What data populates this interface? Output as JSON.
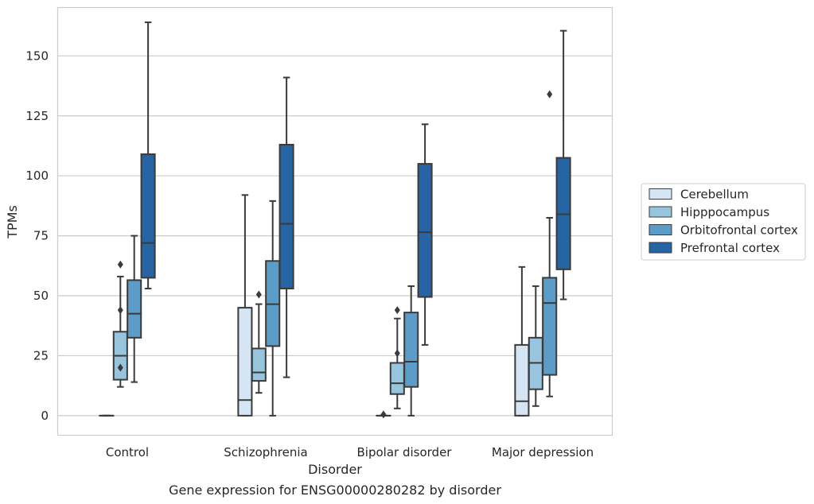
{
  "chart_data": {
    "type": "box",
    "xlabel": "Disorder",
    "ylabel": "TPMs",
    "caption": "Gene expression for ENSG00000280282 by disorder",
    "ylim": [
      -8,
      170
    ],
    "yticks": [
      0,
      25,
      50,
      75,
      100,
      125,
      150
    ],
    "grid": "horizontal",
    "legend_placement": "right",
    "categories": [
      "Control",
      "Schizophrenia",
      "Bipolar disorder",
      "Major depression"
    ],
    "series": [
      {
        "name": "Cerebellum",
        "color": "#d5e5f3",
        "boxes": [
          {
            "whislo": 0,
            "q1": 0,
            "med": 0,
            "q3": 0,
            "whishi": 0,
            "fliers": []
          },
          {
            "whislo": 0,
            "q1": 0,
            "med": 6.5,
            "q3": 45,
            "whishi": 92,
            "fliers": []
          },
          {
            "whislo": 0,
            "q1": 0,
            "med": 0,
            "q3": 0,
            "whishi": 0,
            "fliers": [
              0.5
            ]
          },
          {
            "whislo": 0,
            "q1": 0,
            "med": 6,
            "q3": 29.5,
            "whishi": 62,
            "fliers": []
          }
        ]
      },
      {
        "name": "Hipppocampus",
        "color": "#98c4dd",
        "boxes": [
          {
            "whislo": 12,
            "q1": 15,
            "med": 25,
            "q3": 35,
            "whishi": 58,
            "fliers": [
              63,
              44,
              20
            ]
          },
          {
            "whislo": 9.5,
            "q1": 14.5,
            "med": 18,
            "q3": 28,
            "whishi": 46.5,
            "fliers": [
              50.5
            ]
          },
          {
            "whislo": 3,
            "q1": 9,
            "med": 13.5,
            "q3": 22,
            "whishi": 40.5,
            "fliers": [
              44,
              26
            ]
          },
          {
            "whislo": 4,
            "q1": 11,
            "med": 22,
            "q3": 32.5,
            "whishi": 54,
            "fliers": []
          }
        ]
      },
      {
        "name": "Orbitofrontal cortex",
        "color": "#5b9cc9",
        "boxes": [
          {
            "whislo": 14,
            "q1": 32.5,
            "med": 42.5,
            "q3": 56.5,
            "whishi": 75,
            "fliers": []
          },
          {
            "whislo": 0,
            "q1": 29,
            "med": 46.5,
            "q3": 64.5,
            "whishi": 89.5,
            "fliers": []
          },
          {
            "whislo": 0,
            "q1": 12,
            "med": 22.5,
            "q3": 43,
            "whishi": 54,
            "fliers": []
          },
          {
            "whislo": 8,
            "q1": 17,
            "med": 47,
            "q3": 57.5,
            "whishi": 82.5,
            "fliers": [
              134
            ]
          }
        ]
      },
      {
        "name": "Prefrontal cortex",
        "color": "#2764a4",
        "boxes": [
          {
            "whislo": 53,
            "q1": 57.5,
            "med": 72,
            "q3": 109,
            "whishi": 164,
            "fliers": []
          },
          {
            "whislo": 16,
            "q1": 53,
            "med": 80,
            "q3": 113,
            "whishi": 141,
            "fliers": []
          },
          {
            "whislo": 29.5,
            "q1": 49.5,
            "med": 76.5,
            "q3": 105,
            "whishi": 121.5,
            "fliers": []
          },
          {
            "whislo": 48.5,
            "q1": 61,
            "med": 84,
            "q3": 107.5,
            "whishi": 160.5,
            "fliers": []
          }
        ]
      }
    ]
  }
}
